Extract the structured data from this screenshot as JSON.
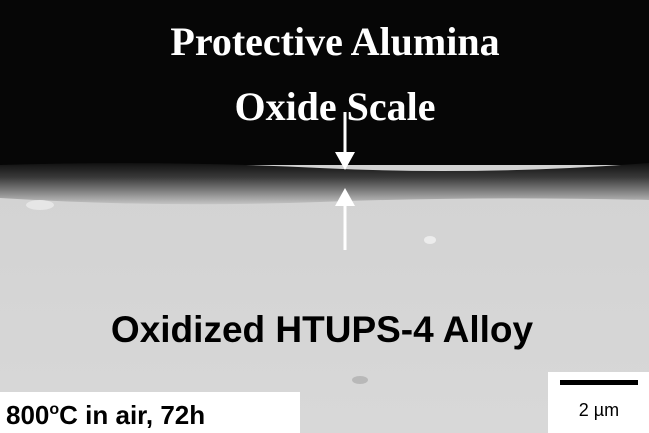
{
  "image": {
    "title_lines": [
      "Protective Alumina",
      "Oxide Scale"
    ],
    "alloy_label": "Oxidized HTUPS-4 Alloy",
    "condition": {
      "before": "800",
      "superscript": "o",
      "after": "C in air, 72h"
    },
    "scale_bar": "2 µm"
  }
}
